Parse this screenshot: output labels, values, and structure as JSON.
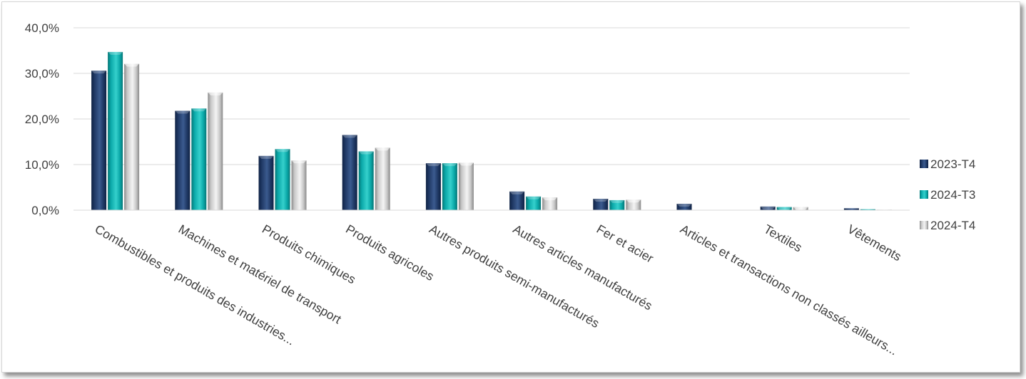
{
  "chart_data": {
    "type": "bar",
    "categories": [
      "Combustibles et produits des industries...",
      "Machines et matériel de transport",
      "Produits chimiques",
      "Produits agricoles",
      "Autres produits semi-manufacturés",
      "Autres articles manufacturés",
      "Fer et acier",
      "Articles et transactions non classés ailleurs...",
      "Textiles",
      "Vêtements"
    ],
    "series": [
      {
        "name": "2023-T4",
        "color": "#1f3864",
        "values": [
          30.6,
          21.8,
          11.9,
          16.5,
          10.3,
          4.1,
          2.5,
          1.4,
          0.8,
          0.4
        ]
      },
      {
        "name": "2024-T3",
        "color": "#0aa8a8",
        "values": [
          34.7,
          22.3,
          13.4,
          12.9,
          10.3,
          3.0,
          2.2,
          0.0,
          0.7,
          0.2
        ]
      },
      {
        "name": "2024-T4",
        "color": "#c8c8c8",
        "values": [
          32.1,
          25.8,
          10.9,
          13.7,
          10.4,
          2.8,
          2.3,
          0.0,
          0.7,
          0.1
        ]
      }
    ],
    "y_ticks": [
      "0,0%",
      "10,0%",
      "20,0%",
      "30,0%",
      "40,0%"
    ],
    "ylim": [
      0,
      40
    ],
    "grid": true,
    "legend_position": "right"
  }
}
